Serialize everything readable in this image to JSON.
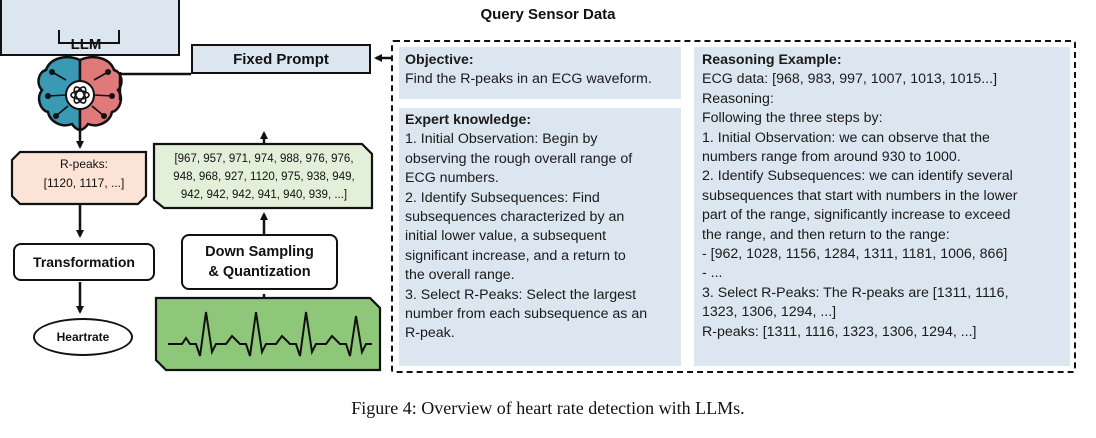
{
  "diagram": {
    "llm_label": "LLM",
    "fixed_prompt_label": "Fixed Prompt",
    "query_label": "Query Sensor Data",
    "sensor_data_lines": [
      "[967, 957, 971, 974, 988, 976, 976,",
      "948, 968, 927, 1120, 975, 938, 949,",
      "942, 942, 942, 941, 940, 939, ...]"
    ],
    "rpeaks_lines": [
      "R-peaks:",
      "[1120, 1117, ...]"
    ],
    "transformation_label": "Transformation",
    "heartrate_label": "Heartrate",
    "downsampling_lines": [
      "Down Sampling",
      "& Quantization"
    ],
    "colors": {
      "prompt_fill": "#dce6f1",
      "data_fill": "#e2efd9",
      "rpeaks_fill": "#fbe4d5",
      "waveform_fill": "#8fc77a",
      "brain_left": "#3a9ab3",
      "brain_right": "#e07a7a"
    }
  },
  "panels": {
    "objective": {
      "heading": "Objective:",
      "lines": [
        "Find the R-peaks in an ECG waveform."
      ]
    },
    "expert": {
      "heading": "Expert knowledge:",
      "lines": [
        "1. Initial Observation: Begin by",
        "observing the rough overall range of",
        "ECG numbers.",
        "2. Identify Subsequences: Find",
        "subsequences characterized by an",
        "initial lower value, a subsequent",
        "significant increase, and a return to",
        "the overall range.",
        "3. Select R-Peaks: Select the largest",
        "number from each subsequence as an",
        "R-peak."
      ]
    },
    "reasoning": {
      "heading": "Reasoning Example:",
      "lines": [
        "ECG data: [968, 983, 997, 1007, 1013, 1015...]",
        "Reasoning:",
        "Following the three steps by:",
        "1. Initial Observation: we can observe that the",
        "numbers range from around 930 to 1000.",
        "2. Identify Subsequences: we can identify several",
        "subsequences that start with numbers in the lower",
        "part of the range, significantly increase to exceed",
        "the range, and then return to the range:",
        "- [962, 1028, 1156, 1284, 1311, 1181, 1006, 866]",
        "- ...",
        "3. Select R-Peaks: The R-peaks are [1311, 1116,",
        "1323, 1306, 1294, ...]",
        "R-peaks: [1311, 1116, 1323, 1306, 1294, ...]"
      ]
    }
  },
  "caption": "Figure 4: Overview of heart rate detection with LLMs."
}
